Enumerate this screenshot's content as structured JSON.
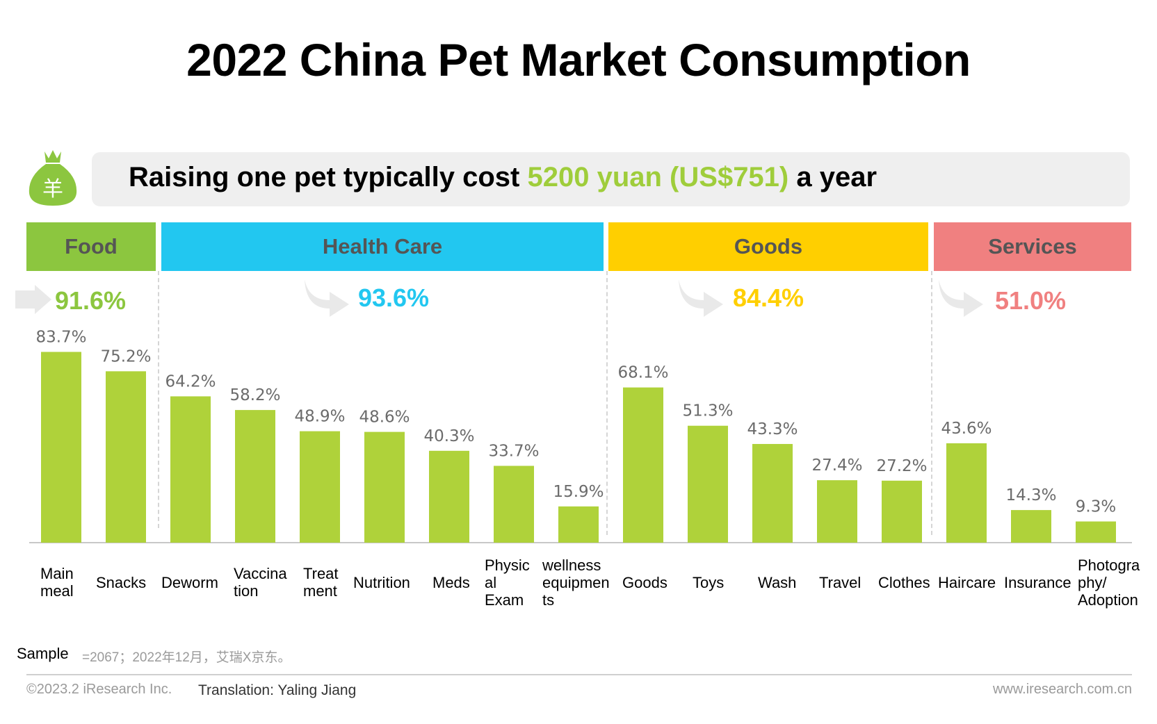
{
  "title": "2022 China Pet Market Consumption",
  "banner": {
    "prefix": "Raising one pet typically cost ",
    "highlight": "5200 yuan (US$751)",
    "suffix": " a year",
    "icon": "money-bag-icon",
    "icon_glyph": "羊"
  },
  "colors": {
    "bar": "#afd23a",
    "food": "#8cc63f",
    "health": "#22c7f0",
    "goods": "#ffcf00",
    "services": "#f08080"
  },
  "categories": [
    {
      "label": "Food",
      "total": "91.6%"
    },
    {
      "label": "Health Care",
      "total": "93.6%"
    },
    {
      "label": "Goods",
      "total": "84.4%"
    },
    {
      "label": "Services",
      "total": "51.0%"
    }
  ],
  "chart_data": {
    "type": "bar",
    "title": "2022 China Pet Market Consumption",
    "xlabel": "",
    "ylabel": "",
    "ylim": [
      0,
      100
    ],
    "categories": [
      "Main meal",
      "Snacks",
      "Deworm",
      "Vaccination",
      "Treatment",
      "Nutrition",
      "Meds",
      "Physical Exam",
      "wellness equipments",
      "Goods",
      "Toys",
      "Wash",
      "Travel",
      "Clothes",
      "Haircare",
      "Insurance",
      "Photography/ Adoption"
    ],
    "display_labels": [
      "Main\nmeal",
      "Snacks",
      "Deworm",
      "Vaccina\ntion",
      "Treat\nment",
      "Nutrition",
      "Meds",
      "Physic\nal\nExam",
      "wellness\nequipmen\nts",
      "Goods",
      "Toys",
      "Wash",
      "Travel",
      "Clothes",
      "Haircare",
      "Insurance",
      "Photogra\nphy/\nAdoption"
    ],
    "values": [
      83.7,
      75.2,
      64.2,
      58.2,
      48.9,
      48.6,
      40.3,
      33.7,
      15.9,
      68.1,
      51.3,
      43.3,
      27.4,
      27.2,
      43.6,
      14.3,
      9.3
    ],
    "value_labels": [
      "83.7%",
      "75.2%",
      "64.2%",
      "58.2%",
      "48.9%",
      "48.6%",
      "40.3%",
      "33.7%",
      "15.9%",
      "68.1%",
      "51.3%",
      "43.3%",
      "27.4%",
      "27.2%",
      "43.6%",
      "14.3%",
      "9.3%"
    ],
    "groups": [
      {
        "name": "Food",
        "total": 91.6,
        "members": [
          "Main meal",
          "Snacks"
        ]
      },
      {
        "name": "Health Care",
        "total": 93.6,
        "members": [
          "Deworm",
          "Vaccination",
          "Treatment",
          "Nutrition",
          "Meds",
          "Physical Exam",
          "wellness equipments"
        ]
      },
      {
        "name": "Goods",
        "total": 84.4,
        "members": [
          "Goods",
          "Toys",
          "Wash",
          "Travel",
          "Clothes"
        ]
      },
      {
        "name": "Services",
        "total": 51.0,
        "members": [
          "Haircare",
          "Insurance",
          "Photography/ Adoption"
        ]
      }
    ]
  },
  "footer": {
    "sample_label": "Sample",
    "sample_note": "=2067；2022年12月，艾瑞X京东。",
    "copyright": "©2023.2 iResearch Inc.",
    "translation": "Translation: Yaling Jiang",
    "website": "www.iresearch.com.cn"
  }
}
